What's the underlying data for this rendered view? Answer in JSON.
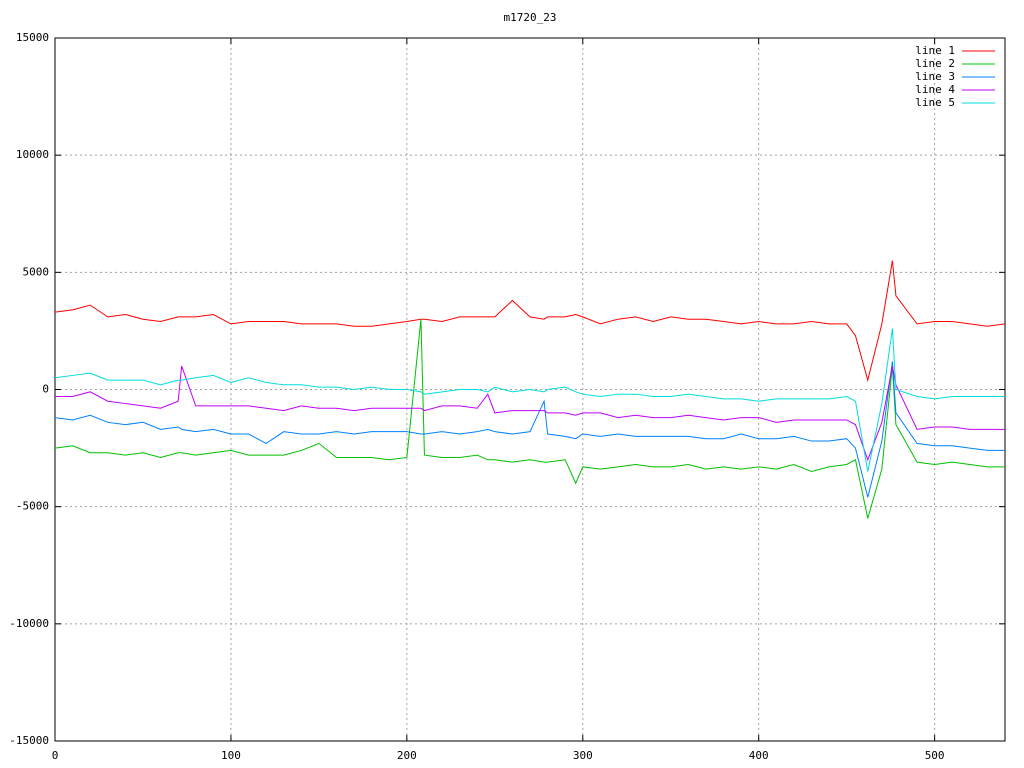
{
  "chart_data": {
    "type": "line",
    "title": "m1720_23",
    "x": [
      0,
      10,
      20,
      30,
      40,
      50,
      60,
      70,
      72,
      80,
      90,
      100,
      110,
      120,
      130,
      140,
      150,
      160,
      170,
      180,
      190,
      200,
      208,
      210,
      220,
      230,
      240,
      246,
      250,
      260,
      270,
      278,
      280,
      290,
      296,
      300,
      310,
      320,
      330,
      340,
      350,
      360,
      370,
      380,
      390,
      400,
      410,
      420,
      430,
      440,
      450,
      455,
      462,
      470,
      476,
      478,
      490,
      500,
      510,
      520,
      530,
      540
    ],
    "series": [
      {
        "name": "line 1",
        "color": "#ff0000",
        "values": [
          3300,
          3400,
          3600,
          3100,
          3200,
          3000,
          2900,
          3100,
          3100,
          3100,
          3200,
          2800,
          2900,
          2900,
          2900,
          2800,
          2800,
          2800,
          2700,
          2700,
          2800,
          2900,
          3000,
          3000,
          2900,
          3100,
          3100,
          3100,
          3100,
          3800,
          3100,
          3000,
          3100,
          3100,
          3200,
          3100,
          2800,
          3000,
          3100,
          2900,
          3100,
          3000,
          3000,
          2900,
          2800,
          2900,
          2800,
          2800,
          2900,
          2800,
          2800,
          2300,
          400,
          2800,
          5500,
          4000,
          2800,
          2900,
          2900,
          2800,
          2700,
          2800
        ]
      },
      {
        "name": "line 2",
        "color": "#00c000",
        "values": [
          -2500,
          -2400,
          -2700,
          -2700,
          -2800,
          -2700,
          -2900,
          -2700,
          -2700,
          -2800,
          -2700,
          -2600,
          -2800,
          -2800,
          -2800,
          -2600,
          -2300,
          -2900,
          -2900,
          -2900,
          -3000,
          -2900,
          3000,
          -2800,
          -2900,
          -2900,
          -2800,
          -3000,
          -3000,
          -3100,
          -3000,
          -3100,
          -3100,
          -3000,
          -4000,
          -3300,
          -3400,
          -3300,
          -3200,
          -3300,
          -3300,
          -3200,
          -3400,
          -3300,
          -3400,
          -3300,
          -3400,
          -3200,
          -3500,
          -3300,
          -3200,
          -3000,
          -5500,
          -3400,
          1000,
          -1500,
          -3100,
          -3200,
          -3100,
          -3200,
          -3300,
          -3300
        ]
      },
      {
        "name": "line 3",
        "color": "#0080ff",
        "values": [
          -1200,
          -1300,
          -1100,
          -1400,
          -1500,
          -1400,
          -1700,
          -1600,
          -1700,
          -1800,
          -1700,
          -1900,
          -1900,
          -2300,
          -1800,
          -1900,
          -1900,
          -1800,
          -1900,
          -1800,
          -1800,
          -1800,
          -1900,
          -1900,
          -1800,
          -1900,
          -1800,
          -1700,
          -1800,
          -1900,
          -1800,
          -500,
          -1900,
          -2000,
          -2100,
          -1900,
          -2000,
          -1900,
          -2000,
          -2000,
          -2000,
          -2000,
          -2100,
          -2100,
          -1900,
          -2100,
          -2100,
          -2000,
          -2200,
          -2200,
          -2100,
          -2500,
          -4600,
          -2200,
          1200,
          -1000,
          -2300,
          -2400,
          -2400,
          -2500,
          -2600,
          -2600
        ]
      },
      {
        "name": "line 4",
        "color": "#c000ff",
        "values": [
          -300,
          -300,
          -100,
          -500,
          -600,
          -700,
          -800,
          -500,
          1000,
          -700,
          -700,
          -700,
          -700,
          -800,
          -900,
          -700,
          -800,
          -800,
          -900,
          -800,
          -800,
          -800,
          -800,
          -900,
          -700,
          -700,
          -800,
          -200,
          -1000,
          -900,
          -900,
          -900,
          -1000,
          -1000,
          -1100,
          -1000,
          -1000,
          -1200,
          -1100,
          -1200,
          -1200,
          -1100,
          -1200,
          -1300,
          -1200,
          -1200,
          -1400,
          -1300,
          -1300,
          -1300,
          -1300,
          -1500,
          -3000,
          -1400,
          1000,
          200,
          -1700,
          -1600,
          -1600,
          -1700,
          -1700,
          -1700
        ]
      },
      {
        "name": "line 5",
        "color": "#00dddd",
        "values": [
          500,
          600,
          700,
          400,
          400,
          400,
          200,
          400,
          400,
          500,
          600,
          300,
          500,
          300,
          200,
          200,
          100,
          100,
          0,
          100,
          0,
          0,
          -100,
          -200,
          -100,
          0,
          0,
          -100,
          100,
          -100,
          0,
          -100,
          0,
          100,
          -100,
          -200,
          -300,
          -200,
          -200,
          -300,
          -300,
          -200,
          -300,
          -400,
          -400,
          -500,
          -400,
          -400,
          -400,
          -400,
          -300,
          -500,
          -3500,
          -600,
          2600,
          0,
          -300,
          -400,
          -300,
          -300,
          -300,
          -300
        ]
      }
    ],
    "xlim": [
      0,
      540
    ],
    "xticks": [
      0,
      100,
      200,
      300,
      400,
      500
    ],
    "ylim": [
      -15000,
      15000
    ],
    "yticks": [
      -15000,
      -10000,
      -5000,
      0,
      5000,
      10000,
      15000
    ],
    "grid": true,
    "legend": "top-right"
  }
}
